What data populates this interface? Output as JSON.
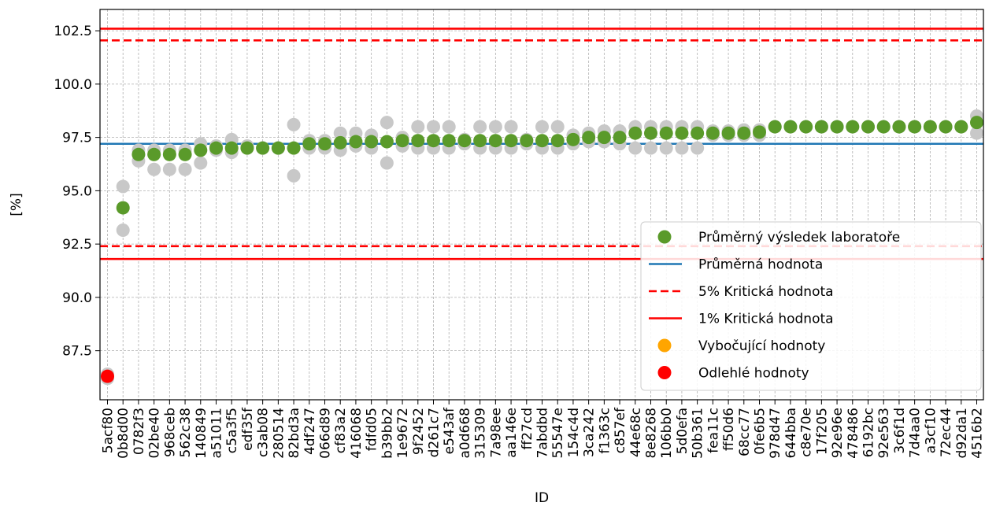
{
  "chart_data": {
    "type": "scatter",
    "xlabel": "ID",
    "ylabel": "[%]",
    "ylim": [
      85.2,
      103.5
    ],
    "y_ticks": [
      "87.5",
      "90.0",
      "92.5",
      "95.0",
      "97.5",
      "100.0",
      "102.5"
    ],
    "y_tick_values": [
      87.5,
      90.0,
      92.5,
      95.0,
      97.5,
      100.0,
      102.5
    ],
    "grid": true,
    "legend_position": "lower-right",
    "categories": [
      "5acf80",
      "0b8d00",
      "0782f3",
      "02be40",
      "968ceb",
      "562c38",
      "140849",
      "a51011",
      "c5a3f5",
      "edf35f",
      "c3ab08",
      "280514",
      "82bd3a",
      "4df247",
      "066d89",
      "cf83a2",
      "416068",
      "fdfd05",
      "b39bb2",
      "1e9672",
      "9f2452",
      "d261c7",
      "e543af",
      "a0d668",
      "315309",
      "7a98ee",
      "aa146e",
      "ff27cd",
      "7abdbd",
      "55547e",
      "154c4d",
      "3ca242",
      "f1363c",
      "c857ef",
      "44e68c",
      "8e8268",
      "106bb0",
      "5d0efa",
      "50b361",
      "fea11c",
      "ff50d6",
      "68cc77",
      "0fe6b5",
      "978d47",
      "644bba",
      "c8e70e",
      "17f205",
      "92e96e",
      "478486",
      "6192bc",
      "92e563",
      "3c6f1d",
      "7d4aa0",
      "a3cf10",
      "72ec44",
      "d92da1",
      "4516b2"
    ],
    "lab_means": [
      86.3,
      94.2,
      96.7,
      96.7,
      96.7,
      96.7,
      96.9,
      97.0,
      97.0,
      97.0,
      97.0,
      97.0,
      97.0,
      97.2,
      97.2,
      97.25,
      97.3,
      97.3,
      97.3,
      97.35,
      97.35,
      97.35,
      97.35,
      97.35,
      97.35,
      97.35,
      97.35,
      97.35,
      97.35,
      97.35,
      97.4,
      97.5,
      97.5,
      97.5,
      97.7,
      97.7,
      97.7,
      97.7,
      97.7,
      97.7,
      97.7,
      97.7,
      97.75,
      98.0,
      98.0,
      98.0,
      98.0,
      98.0,
      98.0,
      98.0,
      98.0,
      98.0,
      98.0,
      98.0,
      98.0,
      98.0,
      98.2
    ],
    "individual_results": [
      [
        86.2,
        86.4
      ],
      [
        95.2,
        93.15
      ],
      [
        96.4,
        96.9
      ],
      [
        96.0,
        96.9
      ],
      [
        96.0,
        96.9
      ],
      [
        96.0,
        96.9
      ],
      [
        96.3,
        97.2
      ],
      [
        96.9,
        97.1
      ],
      [
        96.8,
        97.4
      ],
      [
        97.0,
        97.1
      ],
      [
        97.0,
        97.0
      ],
      [
        97.0,
        97.0
      ],
      [
        95.7,
        98.1
      ],
      [
        97.0,
        97.35
      ],
      [
        97.0,
        97.35
      ],
      [
        96.9,
        97.7
      ],
      [
        97.1,
        97.7
      ],
      [
        97.0,
        97.6
      ],
      [
        96.3,
        98.2
      ],
      [
        97.1,
        97.5
      ],
      [
        97.0,
        98.0
      ],
      [
        97.0,
        98.0
      ],
      [
        97.0,
        98.0
      ],
      [
        97.2,
        97.4
      ],
      [
        97.0,
        98.0
      ],
      [
        97.0,
        98.0
      ],
      [
        97.0,
        98.0
      ],
      [
        97.2,
        97.4
      ],
      [
        97.0,
        98.0
      ],
      [
        97.0,
        98.0
      ],
      [
        97.2,
        97.6
      ],
      [
        97.3,
        97.7
      ],
      [
        97.3,
        97.8
      ],
      [
        97.2,
        97.8
      ],
      [
        97.0,
        98.0
      ],
      [
        97.0,
        98.0
      ],
      [
        97.0,
        98.0
      ],
      [
        97.0,
        98.0
      ],
      [
        97.0,
        98.0
      ],
      [
        97.6,
        97.8
      ],
      [
        97.6,
        97.8
      ],
      [
        97.6,
        97.85
      ],
      [
        97.6,
        97.85
      ],
      [
        98.0,
        98.0
      ],
      [
        98.0,
        98.0
      ],
      [
        98.0,
        98.0
      ],
      [
        98.0,
        98.0
      ],
      [
        98.0,
        98.0
      ],
      [
        98.0,
        98.0
      ],
      [
        98.0,
        98.0
      ],
      [
        98.0,
        98.0
      ],
      [
        98.0,
        98.0
      ],
      [
        98.0,
        98.0
      ],
      [
        98.0,
        98.0
      ],
      [
        98.0,
        98.0
      ],
      [
        98.0,
        98.0
      ],
      [
        97.7,
        98.5
      ]
    ],
    "mean_value": 97.2,
    "critical_5": [
      92.4,
      102.05
    ],
    "critical_1": [
      91.8,
      102.6
    ],
    "outliers": [
      0
    ],
    "legend": [
      {
        "label": "Průměrný výsledek laboratoře",
        "kind": "marker",
        "color": "#5a9a2a"
      },
      {
        "label": "Průměrná hodnota",
        "kind": "line",
        "color": "#1f77b4"
      },
      {
        "label": "5% Kritická hodnota",
        "kind": "dashed",
        "color": "#ff0000"
      },
      {
        "label": "1% Kritická hodnota",
        "kind": "line",
        "color": "#ff0000"
      },
      {
        "label": "Vybočující hodnoty",
        "kind": "marker",
        "color": "#ffa500"
      },
      {
        "label": "Odlehlé hodnoty",
        "kind": "marker",
        "color": "#ff0000"
      }
    ],
    "colors": {
      "lab_mean": "#5a9a2a",
      "individual": "#c8c8c8",
      "mean_line": "#1f77b4",
      "critical": "#ff0000",
      "straggler": "#ffa500",
      "outlier": "#ff0000"
    }
  }
}
